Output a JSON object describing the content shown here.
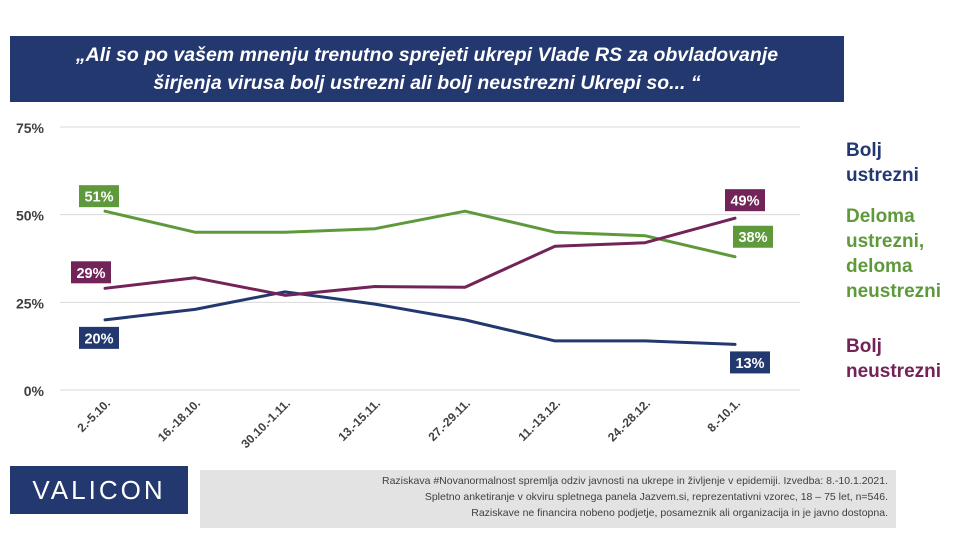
{
  "title": {
    "line1": "„Ali so po vašem mnenju trenutno sprejeti ukrepi Vlade RS za obvladovanje",
    "line2": "širjenja virusa bolj ustrezni ali bolj neustrezni  Ukrepi so... “"
  },
  "chart_data": {
    "type": "line",
    "categories": [
      "2.-5.10.",
      "16.-18.10.",
      "30.10.-1.11.",
      "13.-15.11.",
      "27.-29.11.",
      "11.-13.12.",
      "24.-28.12.",
      "8.-10.1."
    ],
    "ylim": [
      0,
      75
    ],
    "yticks": [
      0,
      25,
      50,
      75
    ],
    "ytick_labels": [
      "0%",
      "25%",
      "50%",
      "75%"
    ],
    "grid": true,
    "legend_position": "right",
    "series": [
      {
        "name": "Bolj ustrezni",
        "name_lines": [
          "Bolj",
          "ustrezni"
        ],
        "color": "#243870",
        "values": [
          20,
          23,
          28,
          24.5,
          20,
          14,
          14,
          13
        ],
        "labels": [
          {
            "index": 0,
            "text": "20%"
          },
          {
            "index": 7,
            "text": "13%"
          }
        ]
      },
      {
        "name": "Deloma ustrezni, deloma neustrezni",
        "name_lines": [
          "Deloma",
          "ustrezni,",
          "deloma",
          "neustrezni"
        ],
        "color": "#5e9a3c",
        "values": [
          51,
          45,
          45,
          46,
          51,
          45,
          44,
          38
        ],
        "labels": [
          {
            "index": 0,
            "text": "51%"
          },
          {
            "index": 7,
            "text": "38%"
          }
        ]
      },
      {
        "name": "Bolj neustrezni",
        "name_lines": [
          "Bolj",
          "neustrezni"
        ],
        "color": "#722357",
        "values": [
          29,
          32,
          27,
          29.5,
          29.3,
          41,
          42,
          49
        ],
        "labels": [
          {
            "index": 0,
            "text": "29%"
          },
          {
            "index": 7,
            "text": "49%"
          }
        ]
      }
    ]
  },
  "logo": "VALICON",
  "footnote": {
    "line1": "Raziskava #Novanormalnost spremlja  odziv javnosti  na ukrepe in življenje v epidemiji.  Izvedba: 8.-10.1.2021.",
    "line2": "Spletno anketiranje v okviru spletnega panela Jazvem.si, reprezentativni vzorec, 18 – 75 let, n=546.",
    "line3": "Raziskave ne financira nobeno podjetje, posameznik ali organizacija in je javno dostopna."
  }
}
